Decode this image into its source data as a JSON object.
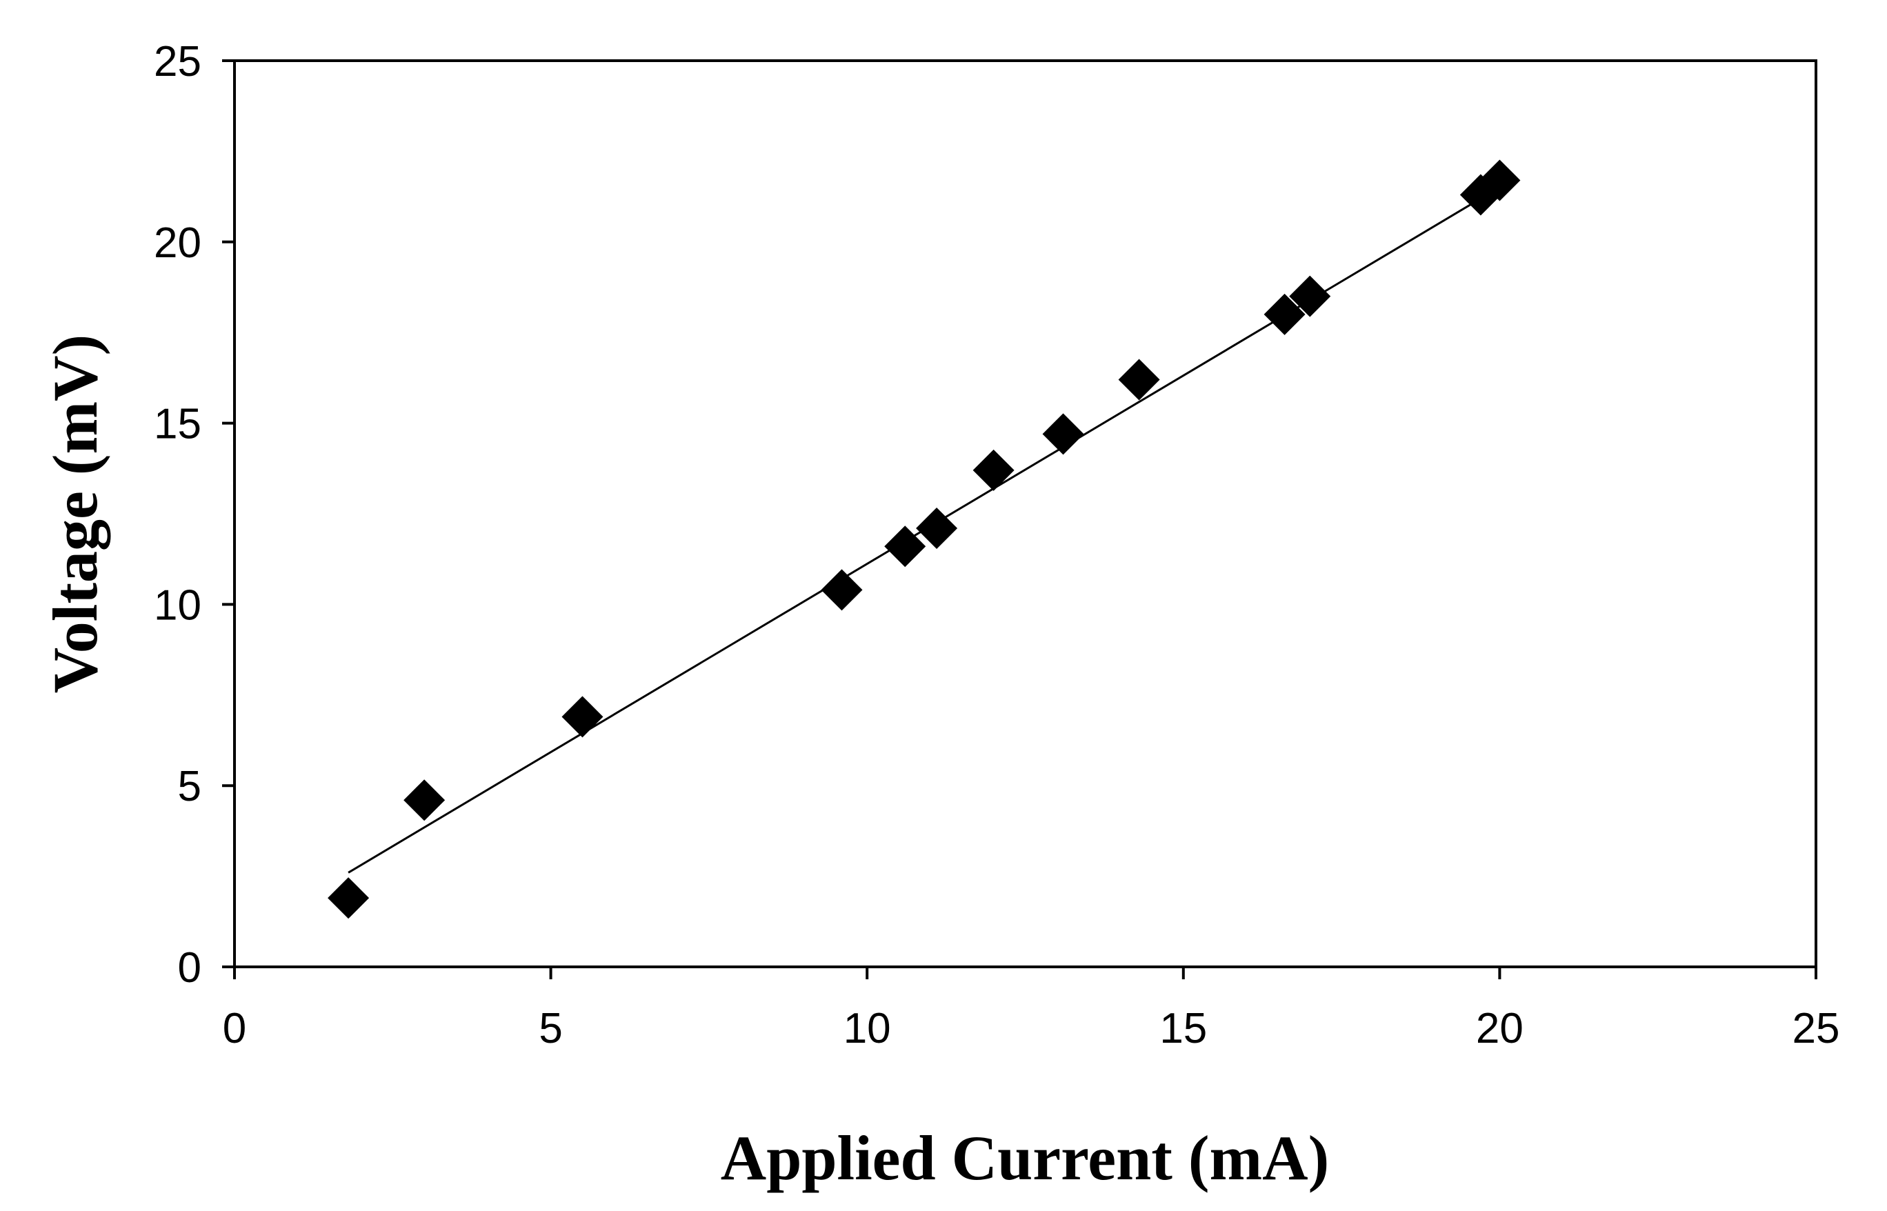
{
  "chart_data": {
    "type": "scatter",
    "title": "",
    "xlabel": "Applied Current (mA)",
    "ylabel": "Voltage (mV)",
    "xlim": [
      0,
      25
    ],
    "ylim": [
      0,
      25
    ],
    "xticks": [
      "0",
      "5",
      "10",
      "15",
      "20",
      "25"
    ],
    "yticks": [
      "0",
      "5",
      "10",
      "15",
      "20",
      "25"
    ],
    "grid": false,
    "legend": "none",
    "marker": "diamond",
    "marker_color": "#000000",
    "series": [
      {
        "x": [
          1.8,
          3.0,
          5.5,
          9.6,
          10.6,
          11.1,
          12.0,
          13.1,
          14.3,
          16.6,
          17.0,
          19.7,
          20.0
        ],
        "y": [
          1.9,
          4.6,
          6.9,
          10.4,
          11.6,
          12.1,
          13.7,
          14.7,
          16.2,
          18.0,
          18.5,
          21.3,
          21.7
        ]
      }
    ],
    "trendline": {
      "type": "linear",
      "x": [
        1.8,
        19.8
      ],
      "y": [
        2.6,
        21.3
      ]
    }
  }
}
